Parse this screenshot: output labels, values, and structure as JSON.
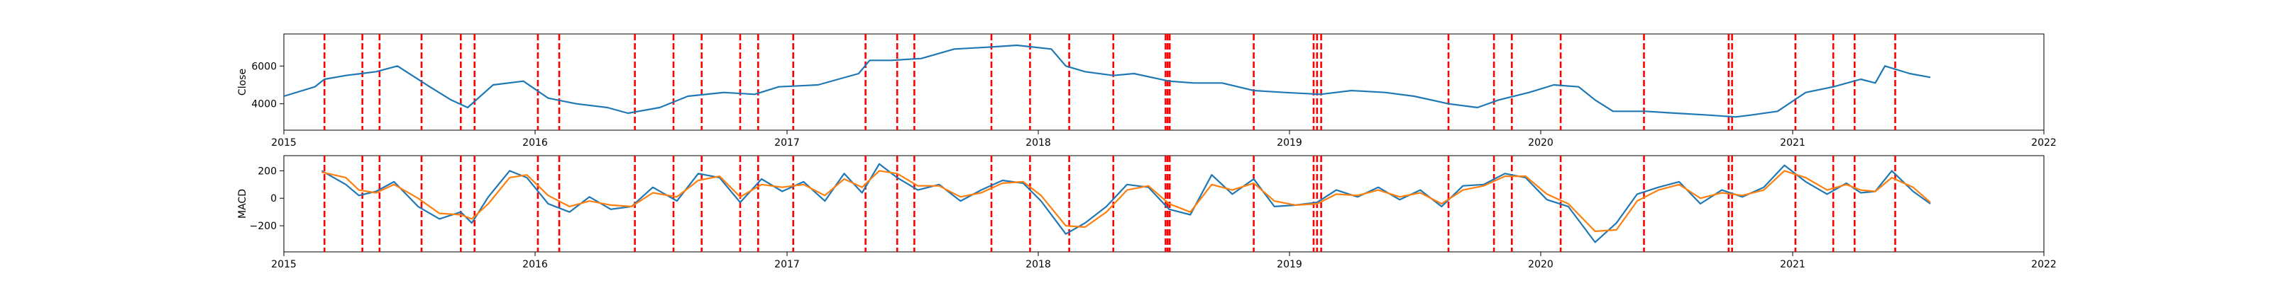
{
  "chart_data": [
    {
      "type": "line",
      "ylabel": "Close",
      "xlim": [
        "2015-01-01",
        "2022-01-01"
      ],
      "ylim": [
        2600,
        7700
      ],
      "x_ticks": [
        "2015",
        "2016",
        "2017",
        "2018",
        "2019",
        "2020",
        "2021",
        "2022"
      ],
      "y_ticks": [
        4000,
        6000
      ],
      "colors": {
        "close": "#1f77b4",
        "events": "#ff0000"
      },
      "series": [
        {
          "x": [
            "2015-01-01",
            "2015-02-15",
            "2015-03-01",
            "2015-04-01",
            "2015-05-15",
            "2015-06-15",
            "2015-08-01",
            "2015-09-01",
            "2015-09-25",
            "2015-11-01",
            "2015-12-15",
            "2016-01-20",
            "2016-03-01",
            "2016-04-15",
            "2016-05-15",
            "2016-06-30",
            "2016-08-10",
            "2016-10-01",
            "2016-11-15",
            "2016-12-20",
            "2017-02-15",
            "2017-04-15",
            "2017-05-01",
            "2017-06-01",
            "2017-07-15",
            "2017-09-01",
            "2017-10-20",
            "2017-12-01",
            "2018-01-20",
            "2018-02-10",
            "2018-03-10",
            "2018-04-20",
            "2018-05-20",
            "2018-07-10",
            "2018-08-15",
            "2018-09-25",
            "2018-11-10",
            "2018-12-25",
            "2019-02-15",
            "2019-04-01",
            "2019-05-20",
            "2019-07-01",
            "2019-08-20",
            "2019-10-01",
            "2019-11-01",
            "2019-12-15",
            "2020-01-20",
            "2020-02-25",
            "2020-03-20",
            "2020-04-15",
            "2020-06-01",
            "2020-07-15",
            "2020-09-01",
            "2020-10-10",
            "2020-11-01",
            "2020-12-10",
            "2021-01-20",
            "2021-03-01",
            "2021-04-10",
            "2021-05-01",
            "2021-05-15",
            "2021-06-20",
            "2021-07-20"
          ],
          "values": [
            4400,
            4900,
            5300,
            5500,
            5700,
            6000,
            4900,
            4200,
            3800,
            5000,
            5200,
            4300,
            4000,
            3800,
            3500,
            3800,
            4400,
            4600,
            4500,
            4900,
            5000,
            5600,
            6300,
            6300,
            6400,
            6900,
            7000,
            7100,
            6900,
            6000,
            5700,
            5500,
            5600,
            5200,
            5100,
            5100,
            4700,
            4600,
            4500,
            4700,
            4600,
            4400,
            4000,
            3800,
            4200,
            4600,
            5000,
            4900,
            4200,
            3600,
            3600,
            3500,
            3400,
            3300,
            3400,
            3600,
            4600,
            4900,
            5300,
            5100,
            6000,
            5600,
            5400
          ]
        }
      ]
    },
    {
      "type": "line",
      "ylabel": "MACD",
      "xlim": [
        "2015-01-01",
        "2022-01-01"
      ],
      "ylim": [
        -390,
        310
      ],
      "x_ticks": [
        "2015",
        "2016",
        "2017",
        "2018",
        "2019",
        "2020",
        "2021",
        "2022"
      ],
      "y_ticks": [
        -200,
        0,
        200
      ],
      "colors": {
        "macd": "#1f77b4",
        "signal": "#ff7f0e",
        "events": "#ff0000"
      },
      "series": [
        {
          "x": [
            "2015-02-25",
            "2015-04-01",
            "2015-04-20",
            "2015-05-15",
            "2015-06-10",
            "2015-07-15",
            "2015-08-15",
            "2015-09-15",
            "2015-10-01",
            "2015-10-25",
            "2015-11-25",
            "2015-12-20",
            "2016-01-20",
            "2016-02-20",
            "2016-03-20",
            "2016-04-20",
            "2016-05-20",
            "2016-06-20",
            "2016-07-25",
            "2016-08-25",
            "2016-09-25",
            "2016-10-25",
            "2016-11-25",
            "2016-12-25",
            "2017-01-25",
            "2017-02-25",
            "2017-03-25",
            "2017-04-20",
            "2017-05-15",
            "2017-06-10",
            "2017-07-10",
            "2017-08-10",
            "2017-09-10",
            "2017-10-10",
            "2017-11-10",
            "2017-12-10",
            "2018-01-05",
            "2018-02-10",
            "2018-03-10",
            "2018-04-10",
            "2018-05-10",
            "2018-06-10",
            "2018-07-10",
            "2018-08-10",
            "2018-09-10",
            "2018-10-10",
            "2018-11-10",
            "2018-12-10",
            "2019-01-10",
            "2019-02-10",
            "2019-03-10",
            "2019-04-10",
            "2019-05-10",
            "2019-06-10",
            "2019-07-10",
            "2019-08-10",
            "2019-09-10",
            "2019-10-10",
            "2019-11-10",
            "2019-12-10",
            "2020-01-10",
            "2020-02-10",
            "2020-03-20",
            "2020-04-20",
            "2020-05-20",
            "2020-06-20",
            "2020-07-20",
            "2020-08-20",
            "2020-09-20",
            "2020-10-20",
            "2020-11-20",
            "2020-12-20",
            "2021-01-20",
            "2021-02-20",
            "2021-03-20",
            "2021-04-10",
            "2021-05-01",
            "2021-05-25",
            "2021-06-25",
            "2021-07-20"
          ],
          "values": [
            200,
            100,
            20,
            50,
            120,
            -60,
            -150,
            -100,
            -180,
            10,
            200,
            150,
            -40,
            -100,
            10,
            -80,
            -60,
            80,
            -20,
            180,
            150,
            -30,
            140,
            50,
            120,
            -20,
            180,
            40,
            250,
            150,
            60,
            100,
            -20,
            60,
            130,
            110,
            -20,
            -260,
            -180,
            -60,
            100,
            80,
            -80,
            -120,
            170,
            30,
            140,
            -60,
            -50,
            -30,
            60,
            10,
            80,
            -10,
            60,
            -60,
            90,
            100,
            180,
            150,
            -10,
            -60,
            -320,
            -180,
            30,
            80,
            120,
            -40,
            60,
            10,
            80,
            240,
            120,
            30,
            110,
            40,
            50,
            200,
            50,
            -40
          ]
        },
        {
          "x": [
            "2015-02-25",
            "2015-04-01",
            "2015-04-20",
            "2015-05-15",
            "2015-06-10",
            "2015-07-15",
            "2015-08-15",
            "2015-09-15",
            "2015-10-01",
            "2015-10-25",
            "2015-11-25",
            "2015-12-20",
            "2016-01-20",
            "2016-02-20",
            "2016-03-20",
            "2016-04-20",
            "2016-05-20",
            "2016-06-20",
            "2016-07-25",
            "2016-08-25",
            "2016-09-25",
            "2016-10-25",
            "2016-11-25",
            "2016-12-25",
            "2017-01-25",
            "2017-02-25",
            "2017-03-25",
            "2017-04-20",
            "2017-05-15",
            "2017-06-10",
            "2017-07-10",
            "2017-08-10",
            "2017-09-10",
            "2017-10-10",
            "2017-11-10",
            "2017-12-10",
            "2018-01-05",
            "2018-02-10",
            "2018-03-10",
            "2018-04-10",
            "2018-05-10",
            "2018-06-10",
            "2018-07-10",
            "2018-08-10",
            "2018-09-10",
            "2018-10-10",
            "2018-11-10",
            "2018-12-10",
            "2019-01-10",
            "2019-02-10",
            "2019-03-10",
            "2019-04-10",
            "2019-05-10",
            "2019-06-10",
            "2019-07-10",
            "2019-08-10",
            "2019-09-10",
            "2019-10-10",
            "2019-11-10",
            "2019-12-10",
            "2020-01-10",
            "2020-02-10",
            "2020-03-20",
            "2020-04-20",
            "2020-05-20",
            "2020-06-20",
            "2020-07-20",
            "2020-08-20",
            "2020-09-20",
            "2020-10-20",
            "2020-11-20",
            "2020-12-20",
            "2021-01-20",
            "2021-02-20",
            "2021-03-20",
            "2021-04-10",
            "2021-05-01",
            "2021-05-25",
            "2021-06-25",
            "2021-07-20"
          ],
          "values": [
            190,
            150,
            60,
            40,
            100,
            0,
            -110,
            -120,
            -150,
            -40,
            150,
            170,
            20,
            -60,
            -20,
            -50,
            -60,
            40,
            10,
            130,
            160,
            10,
            100,
            80,
            100,
            20,
            140,
            80,
            200,
            180,
            90,
            90,
            10,
            40,
            110,
            120,
            20,
            -200,
            -210,
            -100,
            60,
            90,
            -40,
            -100,
            100,
            60,
            110,
            -20,
            -50,
            -40,
            30,
            20,
            60,
            10,
            40,
            -40,
            60,
            90,
            160,
            160,
            30,
            -40,
            -240,
            -230,
            -20,
            60,
            100,
            0,
            40,
            20,
            60,
            200,
            150,
            60,
            100,
            60,
            50,
            150,
            80,
            -30
          ]
        }
      ]
    }
  ],
  "events": [
    "2015-03-01",
    "2015-04-25",
    "2015-05-20",
    "2015-07-20",
    "2015-09-15",
    "2015-10-05",
    "2016-01-05",
    "2016-02-05",
    "2016-05-25",
    "2016-07-20",
    "2016-08-30",
    "2016-10-25",
    "2016-11-20",
    "2017-01-10",
    "2017-04-25",
    "2017-06-10",
    "2017-07-05",
    "2017-10-25",
    "2017-12-20",
    "2018-02-15",
    "2018-04-20",
    "2018-07-05",
    "2018-07-08",
    "2018-07-11",
    "2018-11-10",
    "2019-02-05",
    "2019-02-10",
    "2019-02-16",
    "2019-08-20",
    "2019-10-25",
    "2019-11-20",
    "2020-01-30",
    "2020-05-30",
    "2020-09-30",
    "2020-10-05",
    "2021-01-05",
    "2021-03-01",
    "2021-04-01",
    "2021-05-30"
  ]
}
